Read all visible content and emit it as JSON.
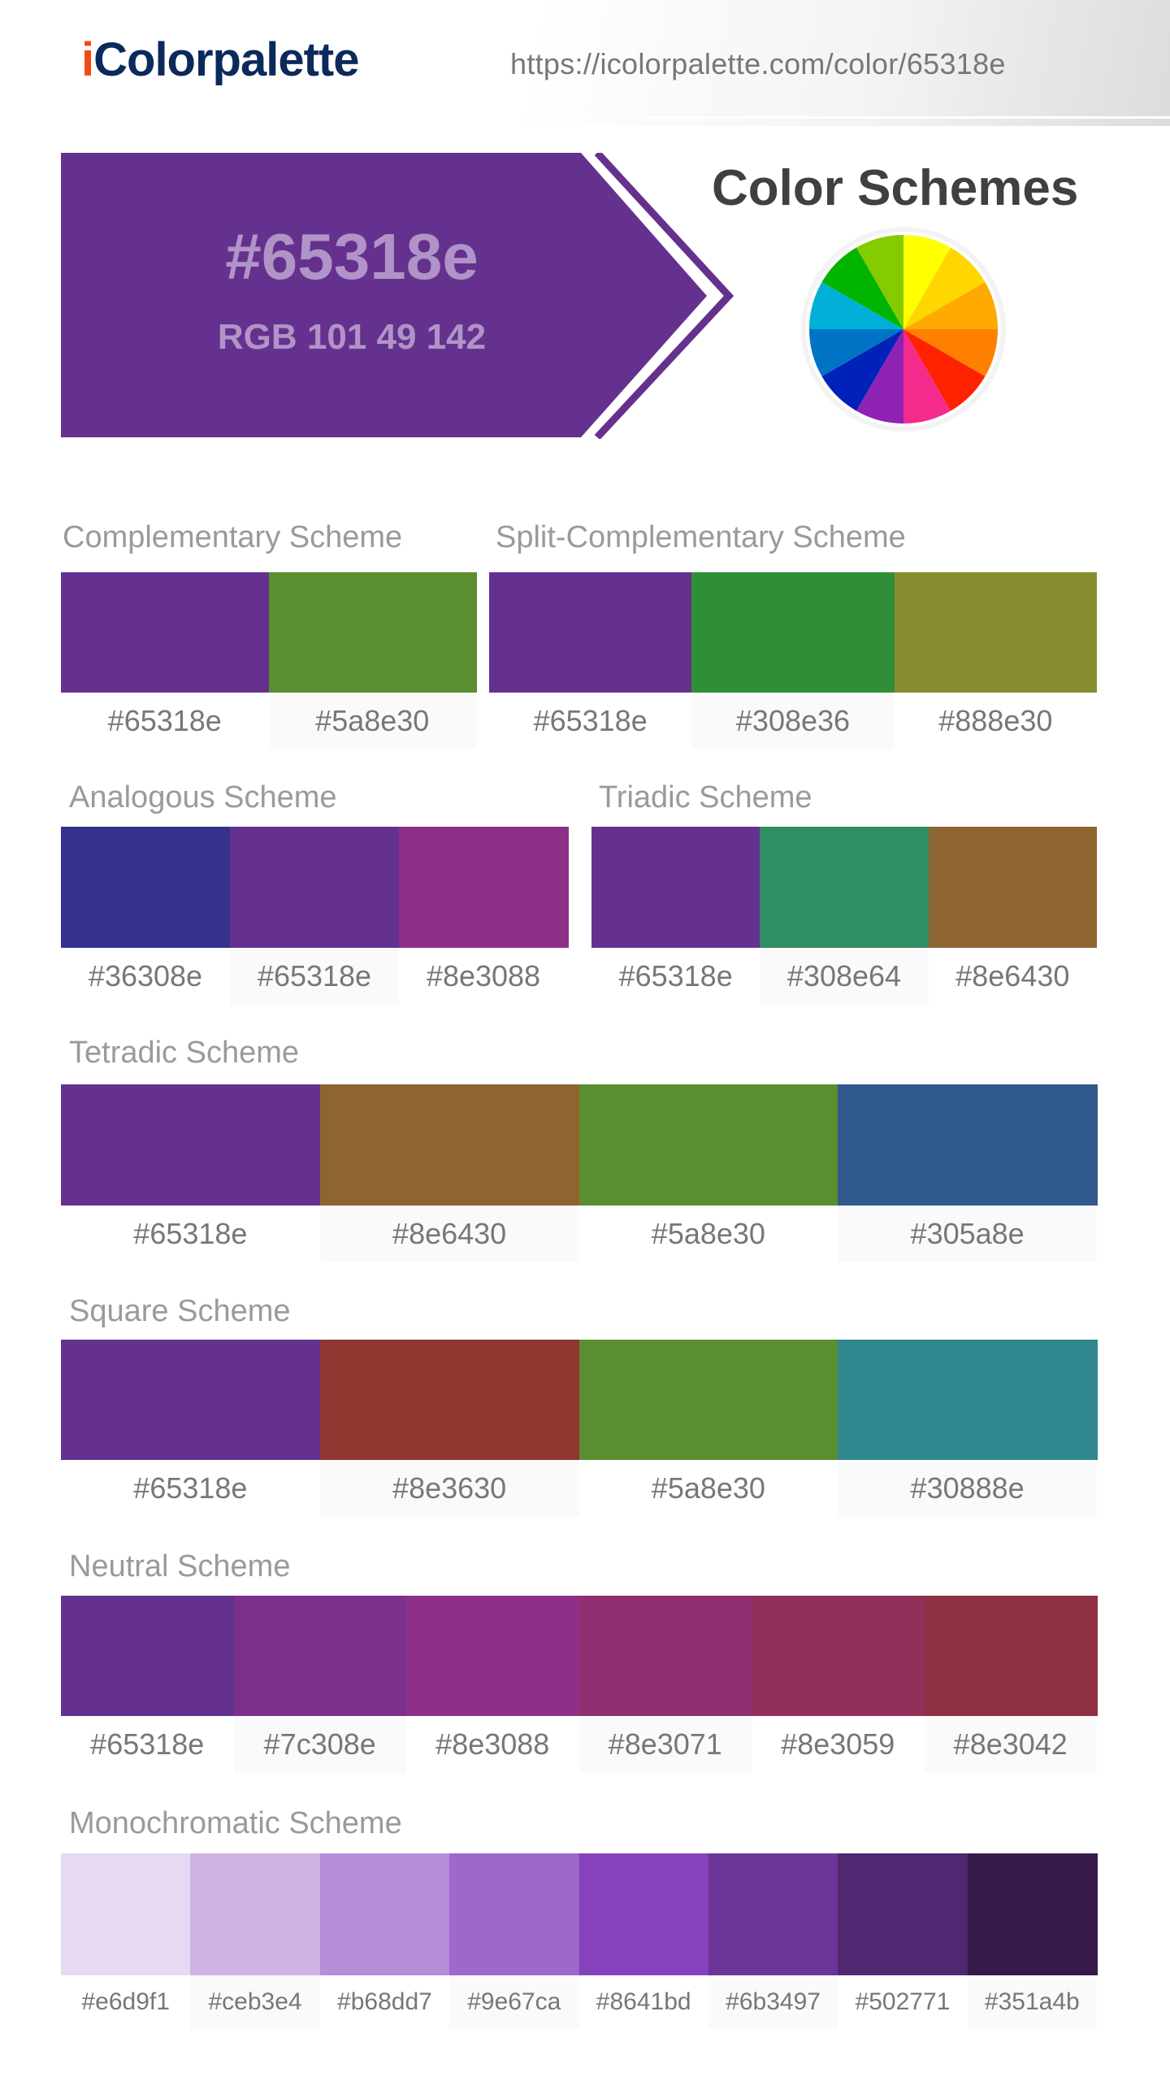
{
  "header": {
    "logo_prefix": "i",
    "logo_rest": "Colorpalette",
    "url": "https://icolorpalette.com/color/65318e"
  },
  "main_color": {
    "hex": "#65318e",
    "rgb": "RGB 101 49 142",
    "text_color": "#b094c8"
  },
  "color_schemes_title": "Color Schemes",
  "wheel_colors": [
    "#ffff00",
    "#ffd700",
    "#ffaa00",
    "#ff8000",
    "#ff2200",
    "#f42a8c",
    "#8e22b4",
    "#0022b8",
    "#0074c4",
    "#00b0d8",
    "#00b400",
    "#84cc00"
  ],
  "schemes": [
    {
      "title": "Complementary Scheme",
      "colors": [
        "#65318e",
        "#5a8e30"
      ]
    },
    {
      "title": "Split-Complementary Scheme",
      "colors": [
        "#65318e",
        "#308e36",
        "#888e30"
      ]
    },
    {
      "title": "Analogous Scheme",
      "colors": [
        "#36308e",
        "#65318e",
        "#8e3088"
      ]
    },
    {
      "title": "Triadic Scheme",
      "colors": [
        "#65318e",
        "#308e64",
        "#8e6430"
      ]
    },
    {
      "title": "Tetradic Scheme",
      "colors": [
        "#65318e",
        "#8e6430",
        "#5a8e30",
        "#305a8e"
      ]
    },
    {
      "title": "Square Scheme",
      "colors": [
        "#65318e",
        "#8e3630",
        "#5a8e30",
        "#30888e"
      ]
    },
    {
      "title": "Neutral Scheme",
      "colors": [
        "#65318e",
        "#7c308e",
        "#8e3088",
        "#8e3071",
        "#8e3059",
        "#8e3042"
      ]
    },
    {
      "title": "Monochromatic Scheme",
      "colors": [
        "#e6d9f1",
        "#ceb3e4",
        "#b68dd7",
        "#9e67ca",
        "#8641bd",
        "#6b3497",
        "#502771",
        "#351a4b"
      ]
    }
  ]
}
